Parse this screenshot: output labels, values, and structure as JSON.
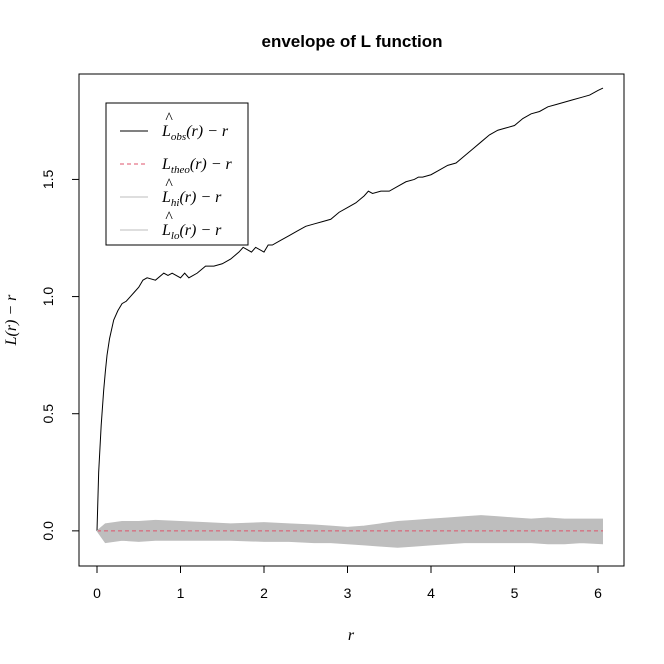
{
  "chart_data": {
    "type": "line",
    "title": "envelope of L function",
    "xlabel": "r",
    "ylabel": "L(r) − r",
    "xlim": [
      0,
      6.06
    ],
    "ylim": [
      -0.15,
      1.95
    ],
    "xticks": [
      0,
      1,
      2,
      3,
      4,
      5,
      6
    ],
    "xtick_labels": [
      "0",
      "1",
      "2",
      "3",
      "4",
      "5",
      "6"
    ],
    "yticks": [
      0.0,
      0.5,
      1.0,
      1.5
    ],
    "ytick_labels": [
      "0.0",
      "0.5",
      "1.0",
      "1.5"
    ],
    "grid": false,
    "legend_position": "top-left",
    "legend": [
      {
        "main": "L",
        "hat": true,
        "sub": "obs",
        "suffix": "(r) − r",
        "color": "#000000",
        "dash": "solid"
      },
      {
        "main": "L",
        "hat": false,
        "sub": "theo",
        "suffix": "(r) − r",
        "color": "#DF536B",
        "dash": "dashed"
      },
      {
        "main": "L",
        "hat": true,
        "sub": "hi",
        "suffix": "(r) − r",
        "color": "#BEBEBE",
        "dash": "solid"
      },
      {
        "main": "L",
        "hat": true,
        "sub": "lo",
        "suffix": "(r) − r",
        "color": "#BEBEBE",
        "dash": "solid"
      }
    ],
    "series": [
      {
        "name": "obs",
        "color": "#000000",
        "x": [
          0,
          0.02,
          0.05,
          0.08,
          0.1,
          0.12,
          0.15,
          0.2,
          0.25,
          0.3,
          0.35,
          0.4,
          0.45,
          0.5,
          0.55,
          0.6,
          0.7,
          0.8,
          0.85,
          0.9,
          1.0,
          1.05,
          1.1,
          1.2,
          1.3,
          1.4,
          1.5,
          1.6,
          1.7,
          1.75,
          1.8,
          1.85,
          1.9,
          2.0,
          2.05,
          2.1,
          2.2,
          2.3,
          2.4,
          2.5,
          2.6,
          2.7,
          2.8,
          2.9,
          3.0,
          3.1,
          3.2,
          3.25,
          3.3,
          3.4,
          3.5,
          3.6,
          3.7,
          3.8,
          3.85,
          3.9,
          4.0,
          4.1,
          4.2,
          4.3,
          4.4,
          4.5,
          4.6,
          4.7,
          4.8,
          4.9,
          5.0,
          5.1,
          5.2,
          5.3,
          5.4,
          5.5,
          5.6,
          5.7,
          5.8,
          5.9,
          6.0,
          6.06
        ],
        "y": [
          0.0,
          0.25,
          0.45,
          0.6,
          0.68,
          0.75,
          0.82,
          0.9,
          0.94,
          0.97,
          0.98,
          1.0,
          1.02,
          1.04,
          1.07,
          1.08,
          1.07,
          1.1,
          1.09,
          1.1,
          1.08,
          1.1,
          1.08,
          1.1,
          1.13,
          1.13,
          1.14,
          1.16,
          1.19,
          1.21,
          1.2,
          1.19,
          1.21,
          1.19,
          1.22,
          1.22,
          1.24,
          1.26,
          1.28,
          1.3,
          1.31,
          1.32,
          1.33,
          1.36,
          1.38,
          1.4,
          1.43,
          1.45,
          1.44,
          1.45,
          1.45,
          1.47,
          1.49,
          1.5,
          1.51,
          1.51,
          1.52,
          1.54,
          1.56,
          1.57,
          1.6,
          1.63,
          1.66,
          1.69,
          1.71,
          1.72,
          1.73,
          1.76,
          1.78,
          1.79,
          1.81,
          1.82,
          1.83,
          1.84,
          1.85,
          1.86,
          1.88,
          1.89
        ]
      },
      {
        "name": "theo",
        "color": "#DF536B",
        "x": [
          0,
          6.06
        ],
        "y": [
          0,
          0
        ]
      },
      {
        "name": "hi",
        "color": "#BEBEBE",
        "x": [
          0,
          0.1,
          0.3,
          0.5,
          0.7,
          1.0,
          1.3,
          1.6,
          2.0,
          2.3,
          2.6,
          2.8,
          3.0,
          3.2,
          3.4,
          3.6,
          3.8,
          4.0,
          4.2,
          4.4,
          4.6,
          4.8,
          5.0,
          5.2,
          5.4,
          5.6,
          5.8,
          6.06
        ],
        "y": [
          0.0,
          0.03,
          0.04,
          0.04,
          0.045,
          0.04,
          0.035,
          0.03,
          0.035,
          0.03,
          0.025,
          0.02,
          0.015,
          0.02,
          0.03,
          0.04,
          0.045,
          0.05,
          0.055,
          0.06,
          0.065,
          0.06,
          0.055,
          0.05,
          0.055,
          0.05,
          0.05,
          0.05
        ]
      },
      {
        "name": "lo",
        "color": "#BEBEBE",
        "x": [
          0,
          0.1,
          0.3,
          0.5,
          0.7,
          1.0,
          1.3,
          1.6,
          2.0,
          2.3,
          2.6,
          2.8,
          3.0,
          3.2,
          3.4,
          3.6,
          3.8,
          4.0,
          4.2,
          4.4,
          4.6,
          4.8,
          5.0,
          5.2,
          5.4,
          5.6,
          5.8,
          6.06
        ],
        "y": [
          0.0,
          -0.05,
          -0.04,
          -0.045,
          -0.04,
          -0.04,
          -0.04,
          -0.04,
          -0.045,
          -0.045,
          -0.05,
          -0.05,
          -0.055,
          -0.06,
          -0.065,
          -0.07,
          -0.065,
          -0.06,
          -0.055,
          -0.05,
          -0.05,
          -0.05,
          -0.05,
          -0.05,
          -0.055,
          -0.055,
          -0.05,
          -0.055
        ]
      }
    ]
  }
}
